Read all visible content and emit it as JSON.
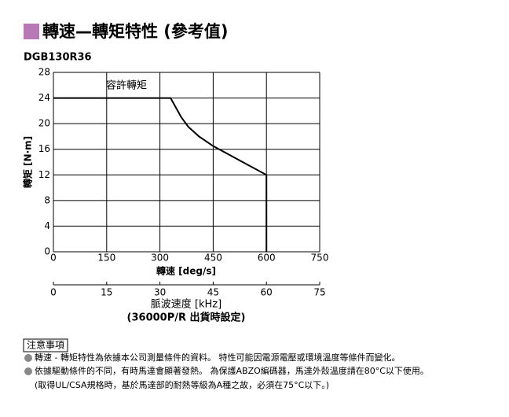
{
  "chart_data": {
    "type": "line",
    "title": "轉速—轉矩特性 (參考值)",
    "subtitle": "DGB130R36",
    "x": [
      0,
      330,
      345,
      360,
      380,
      410,
      450,
      500,
      550,
      600,
      600
    ],
    "values": [
      24,
      24,
      22.5,
      21,
      19.5,
      18,
      16.5,
      15,
      13.5,
      12,
      0
    ],
    "color": "#000000",
    "annotation": "容許轉矩",
    "xlabel": "轉速 [deg/s]",
    "ylabel": "轉矩 [N·m]",
    "xlim": [
      0,
      750
    ],
    "xticks": [
      0,
      150,
      300,
      450,
      600,
      750
    ],
    "ylim": [
      0,
      28
    ],
    "yticks": [
      0,
      4,
      8,
      12,
      16,
      20,
      24,
      28
    ],
    "x2label": "脈波速度 [kHz]",
    "x2note": "(36000P/R 出貨時設定)",
    "x2lim": [
      0,
      75
    ],
    "x2ticks": [
      0,
      15,
      30,
      45,
      60,
      75
    ],
    "grid": true
  },
  "notes": {
    "title": "注意事項",
    "lines": [
      "轉速 - 轉矩特性為依據本公司測量條件的資料。 特性可能因電源電壓或環境溫度等條件而變化。",
      "依據驅動條件的不同，有時馬達會顯著發熱。 為保護ABZO編碼器，馬達外殼溫度請在80°C以下使用。",
      "(取得UL/CSA規格時，基於馬達部的耐熱等級為A種之故，必須在75°C以下。)"
    ]
  }
}
